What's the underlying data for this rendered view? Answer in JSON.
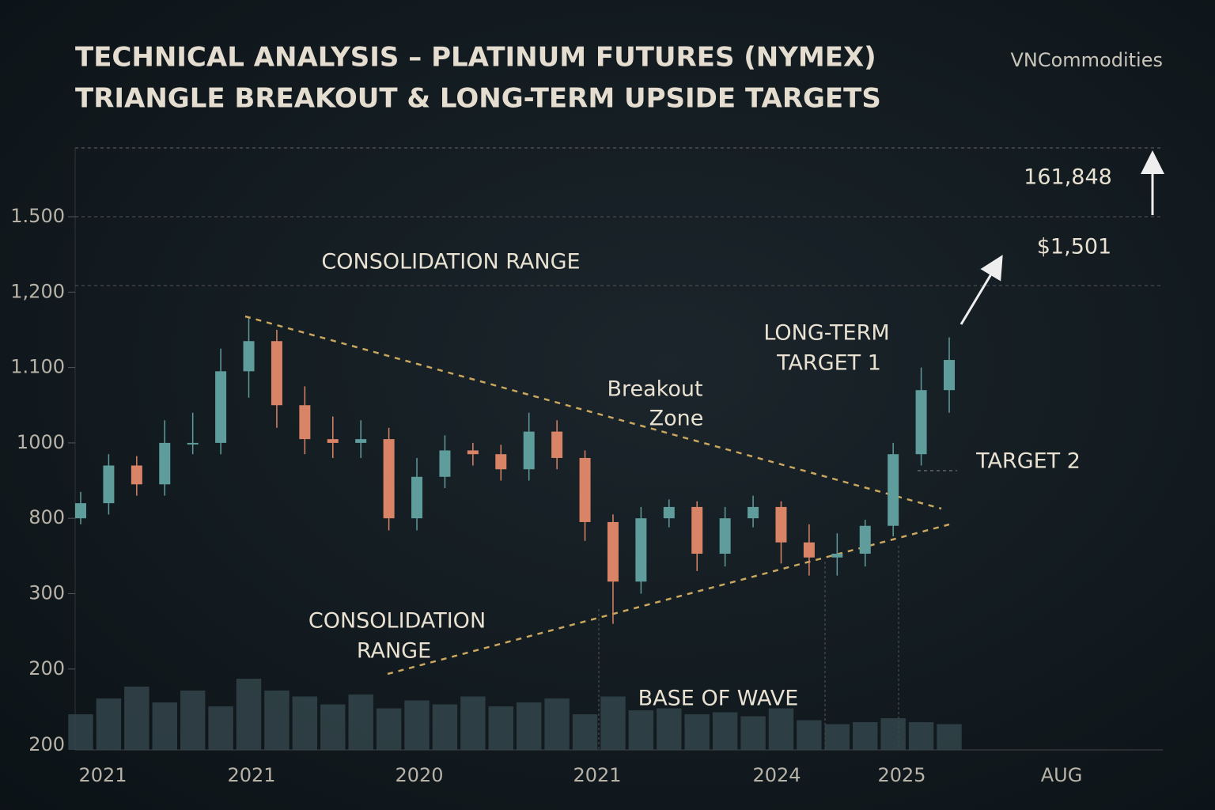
{
  "chart_data": {
    "type": "candlestick",
    "title": [
      "TECHNICAL ANALYSIS – PLATINUM FUTURES (NYMEX)",
      "TRIANGLE BREAKOUT & LONG-TERM UPSIDE TARGETS"
    ],
    "brand": "VNCommodities",
    "annotations": {
      "top_range": "CONSOLIDATION RANGE",
      "breakout": [
        "Breakout",
        "Zone"
      ],
      "target1": [
        "LONG-TERM",
        "TARGET 1"
      ],
      "target2": "TARGET 2",
      "bottom_range": [
        "CONSOLIDATION",
        "RANGE"
      ],
      "base": "BASE OF WAVE",
      "level_high": "161,848",
      "level_mid": "$1,501"
    },
    "x_labels": [
      "2021",
      "2021",
      "2020",
      "2021",
      "2024",
      "2025",
      "AUG"
    ],
    "yticks": [
      {
        "value": 1500,
        "label": "1.500"
      },
      {
        "value": 1200,
        "label": "1,200"
      },
      {
        "value": 1100,
        "label": "1.100"
      },
      1000,
      800,
      300,
      200
    ],
    "candles": {
      "open": [
        800,
        840,
        940,
        890,
        1000,
        1000,
        1095,
        1135,
        1050,
        1005,
        1000,
        1005,
        800,
        910,
        980,
        970,
        930,
        1015,
        960,
        775,
        380,
        800,
        830,
        565,
        800,
        830,
        640,
        540,
        565,
        750,
        970,
        1070
      ],
      "high": [
        870,
        970,
        965,
        1030,
        1040,
        1125,
        1165,
        1150,
        1075,
        1035,
        1030,
        1020,
        960,
        1010,
        1000,
        995,
        1040,
        1030,
        980,
        810,
        830,
        850,
        845,
        830,
        860,
        845,
        760,
        700,
        790,
        1000,
        1100,
        1140
      ],
      "low": [
        760,
        810,
        860,
        860,
        970,
        970,
        1060,
        1020,
        970,
        960,
        960,
        720,
        720,
        880,
        940,
        900,
        900,
        930,
        650,
        260,
        300,
        740,
        450,
        480,
        740,
        500,
        420,
        420,
        480,
        680,
        940,
        1040
      ],
      "close": [
        840,
        940,
        890,
        1000,
        1000,
        1095,
        1135,
        1050,
        1005,
        1000,
        1005,
        800,
        910,
        980,
        970,
        930,
        1015,
        960,
        775,
        380,
        800,
        830,
        565,
        800,
        830,
        640,
        540,
        565,
        750,
        970,
        1070,
        1110
      ],
      "up_color": "#5f9c9c",
      "down_color": "#d98466"
    },
    "volume": {
      "values": [
        380,
        460,
        520,
        440,
        500,
        420,
        560,
        500,
        470,
        430,
        480,
        410,
        450,
        430,
        470,
        420,
        440,
        460,
        380,
        470,
        400,
        410,
        380,
        390,
        370,
        410,
        350,
        330,
        340,
        360,
        340,
        330
      ],
      "ylim": [
        200,
        600
      ],
      "yticks": [
        200
      ],
      "color": "#34474d"
    }
  }
}
